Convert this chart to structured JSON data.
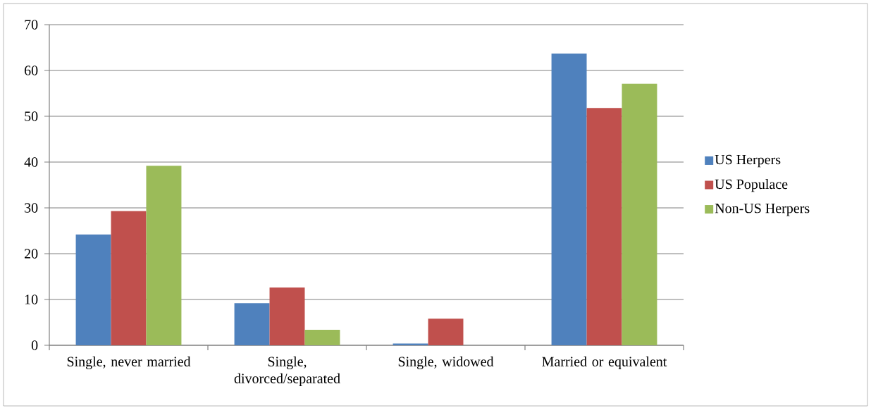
{
  "chart_data": {
    "type": "bar",
    "categories": [
      "Single, never married",
      "Single, divorced/separated",
      "Single, widowed",
      "Married or equivalent"
    ],
    "series": [
      {
        "name": "US Herpers",
        "color": "#4f81bd",
        "values": [
          24.2,
          9.2,
          0.4,
          63.7
        ]
      },
      {
        "name": "US Populace",
        "color": "#c0504d",
        "values": [
          29.3,
          12.6,
          5.8,
          51.8
        ]
      },
      {
        "name": "Non-US Herpers",
        "color": "#9bbb59",
        "values": [
          39.2,
          3.4,
          0,
          57.1
        ]
      }
    ],
    "ylim": [
      0,
      70
    ],
    "yticks": [
      0,
      10,
      20,
      30,
      40,
      50,
      60,
      70
    ],
    "grid": "y",
    "legend": "right"
  }
}
